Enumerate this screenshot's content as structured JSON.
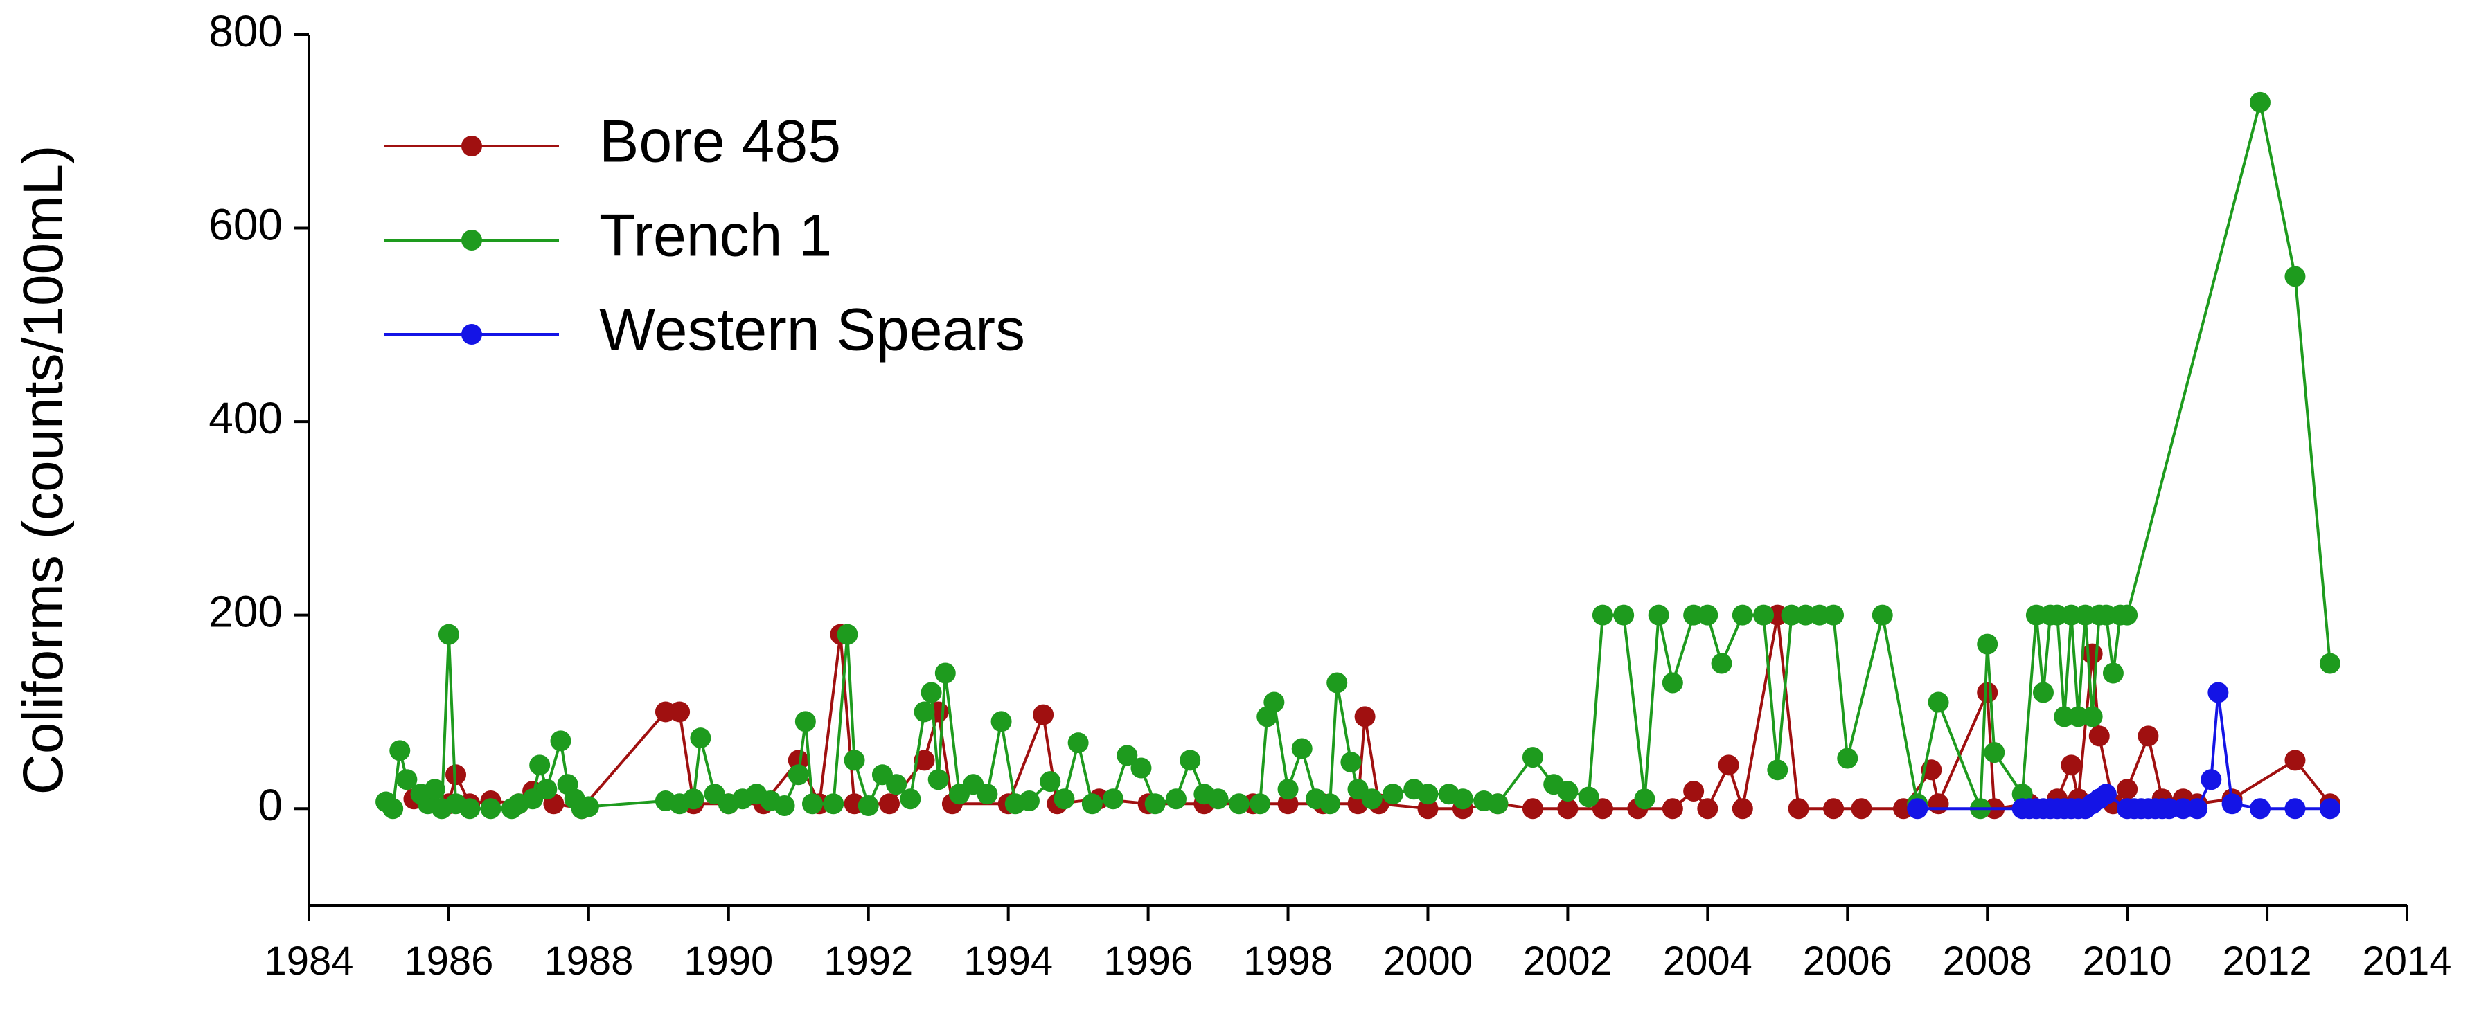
{
  "chart_data": {
    "type": "line",
    "ylabel": "Coliforms (counts/100mL)",
    "xlim": [
      1984,
      2014
    ],
    "xticks": [
      1984,
      1986,
      1988,
      1990,
      1992,
      1994,
      1996,
      1998,
      2000,
      2002,
      2004,
      2006,
      2008,
      2010,
      2012,
      2014
    ],
    "ylim": [
      -100,
      800
    ],
    "yticks": [
      0,
      200,
      400,
      600,
      800
    ],
    "legend": "upper left",
    "series": [
      {
        "name": "Bore 485",
        "color": "#a01010",
        "x": [
          1985.5,
          1986.0,
          1986.1,
          1986.3,
          1986.6,
          1987.0,
          1987.2,
          1987.5,
          1987.9,
          1989.1,
          1989.3,
          1989.5,
          1990.0,
          1990.5,
          1991.0,
          1991.3,
          1991.6,
          1991.8,
          1992.3,
          1992.8,
          1993.0,
          1993.2,
          1994.0,
          1994.5,
          1994.7,
          1995.3,
          1996.0,
          1996.8,
          1997.5,
          1998.0,
          1998.5,
          1999.0,
          1999.1,
          1999.3,
          2000.0,
          2000.5,
          2001.0,
          2001.5,
          2002.0,
          2002.5,
          2003.0,
          2003.5,
          2003.8,
          2004.0,
          2004.3,
          2004.5,
          2005.0,
          2005.3,
          2005.8,
          2006.2,
          2006.8,
          2007.2,
          2007.3,
          2008.0,
          2008.1,
          2008.6,
          2009.0,
          2009.2,
          2009.3,
          2009.5,
          2009.6,
          2009.8,
          2010.0,
          2010.3,
          2010.5,
          2010.8,
          2011.0,
          2011.5,
          2012.4,
          2012.9
        ],
        "values": [
          10,
          5,
          35,
          5,
          8,
          5,
          18,
          5,
          0,
          100,
          100,
          5,
          5,
          5,
          50,
          5,
          180,
          5,
          5,
          50,
          100,
          5,
          5,
          97,
          5,
          10,
          5,
          5,
          5,
          5,
          5,
          5,
          95,
          5,
          0,
          0,
          5,
          0,
          0,
          0,
          0,
          0,
          18,
          0,
          45,
          0,
          200,
          0,
          0,
          0,
          0,
          40,
          5,
          120,
          0,
          5,
          10,
          45,
          10,
          160,
          75,
          5,
          20,
          75,
          10,
          10,
          5,
          10,
          50,
          5
        ]
      },
      {
        "name": "Trench 1",
        "color": "#1e9b1e",
        "x": [
          1985.1,
          1985.2,
          1985.3,
          1985.4,
          1985.6,
          1985.7,
          1985.8,
          1985.9,
          1986.0,
          1986.1,
          1986.3,
          1986.6,
          1986.9,
          1987.0,
          1987.2,
          1987.3,
          1987.4,
          1987.6,
          1987.7,
          1987.8,
          1987.9,
          1988.0,
          1989.1,
          1989.3,
          1989.5,
          1989.6,
          1989.8,
          1990.0,
          1990.2,
          1990.4,
          1990.6,
          1990.8,
          1991.0,
          1991.1,
          1991.2,
          1991.5,
          1991.7,
          1991.8,
          1992.0,
          1992.2,
          1992.4,
          1992.6,
          1992.8,
          1992.9,
          1993.0,
          1993.1,
          1993.3,
          1993.5,
          1993.7,
          1993.9,
          1994.1,
          1994.3,
          1994.6,
          1994.8,
          1995.0,
          1995.2,
          1995.5,
          1995.7,
          1995.9,
          1996.1,
          1996.4,
          1996.6,
          1996.8,
          1997.0,
          1997.3,
          1997.6,
          1997.7,
          1997.8,
          1998.0,
          1998.2,
          1998.4,
          1998.6,
          1998.7,
          1998.9,
          1999.0,
          1999.2,
          1999.5,
          1999.8,
          2000.0,
          2000.3,
          2000.5,
          2000.8,
          2001.0,
          2001.5,
          2001.8,
          2002.0,
          2002.3,
          2002.5,
          2002.8,
          2003.1,
          2003.3,
          2003.5,
          2003.8,
          2004.0,
          2004.2,
          2004.5,
          2004.8,
          2005.0,
          2005.2,
          2005.4,
          2005.6,
          2005.8,
          2006.0,
          2006.5,
          2007.0,
          2007.3,
          2007.9,
          2008.0,
          2008.1,
          2008.5,
          2008.7,
          2008.8,
          2008.9,
          2009.0,
          2009.1,
          2009.2,
          2009.3,
          2009.4,
          2009.5,
          2009.6,
          2009.7,
          2009.8,
          2009.9,
          2010.0,
          2011.9,
          2012.4,
          2012.9
        ],
        "values": [
          7,
          0,
          60,
          30,
          15,
          5,
          20,
          0,
          180,
          5,
          0,
          0,
          0,
          5,
          10,
          45,
          20,
          70,
          25,
          10,
          0,
          2,
          8,
          5,
          10,
          73,
          15,
          5,
          10,
          15,
          8,
          3,
          35,
          90,
          5,
          5,
          180,
          50,
          3,
          35,
          25,
          10,
          100,
          120,
          30,
          140,
          15,
          25,
          15,
          90,
          5,
          8,
          28,
          10,
          68,
          5,
          10,
          55,
          42,
          5,
          10,
          50,
          15,
          10,
          5,
          5,
          95,
          110,
          20,
          62,
          10,
          5,
          130,
          48,
          20,
          10,
          15,
          20,
          15,
          15,
          10,
          8,
          5,
          53,
          25,
          18,
          12,
          200,
          200,
          10,
          200,
          130,
          200,
          200,
          150,
          200,
          200,
          40,
          200,
          200,
          200,
          200,
          52,
          200,
          5,
          110,
          0,
          170,
          58,
          15,
          200,
          120,
          200,
          200,
          95,
          200,
          95,
          200,
          95,
          200,
          200,
          140,
          200,
          200,
          730,
          550,
          150
        ]
      },
      {
        "name": "Western Spears",
        "color": "#1414e6",
        "x": [
          2007.0,
          2008.5,
          2008.6,
          2008.7,
          2008.8,
          2008.9,
          2009.0,
          2009.1,
          2009.2,
          2009.3,
          2009.4,
          2009.5,
          2009.6,
          2009.7,
          2010.0,
          2010.1,
          2010.2,
          2010.3,
          2010.4,
          2010.5,
          2010.6,
          2010.8,
          2011.0,
          2011.2,
          2011.3,
          2011.5,
          2011.9,
          2012.4,
          2012.9
        ],
        "values": [
          0,
          0,
          0,
          0,
          0,
          0,
          0,
          0,
          0,
          0,
          0,
          5,
          10,
          15,
          0,
          0,
          0,
          0,
          0,
          0,
          0,
          0,
          0,
          30,
          120,
          5,
          0,
          0,
          0
        ]
      }
    ]
  }
}
